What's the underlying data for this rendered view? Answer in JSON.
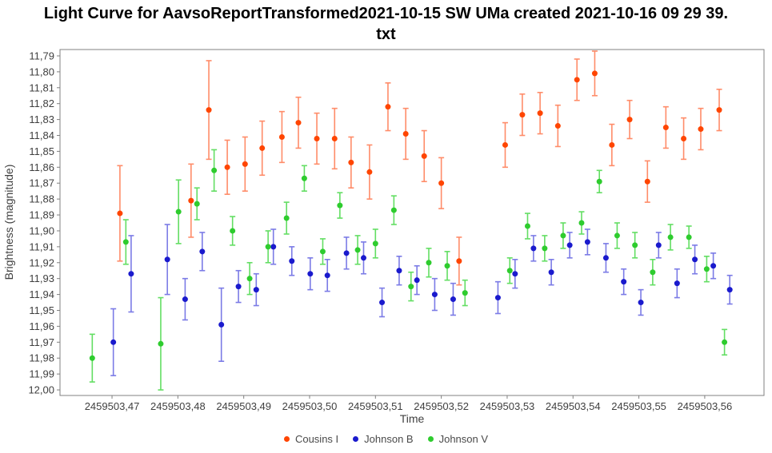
{
  "title": {
    "line1": "Light Curve for AavsoReportTransformed2021-10-15 SW UMa created 2021-10-16 09 29 39.",
    "line2": "txt"
  },
  "axes": {
    "x_label": "Time",
    "y_label": "Brightness (magnitude)"
  },
  "chart_data": {
    "type": "scatter",
    "error_bars": true,
    "title": "Light Curve for AavsoReportTransformed2021-10-15 SW UMa created 2021-10-16 09 29 39.txt",
    "xlabel": "Time",
    "ylabel": "Brightness (magnitude)",
    "xlim": [
      2459503.4621,
      2459503.569
    ],
    "ylim": [
      11.786,
      12.0035
    ],
    "y_axis_inverted": true,
    "grid": false,
    "legend_position": "bottom",
    "frame_color": "#808080",
    "x_ticks": [
      2459503.47,
      2459503.48,
      2459503.49,
      2459503.5,
      2459503.51,
      2459503.52,
      2459503.53,
      2459503.54,
      2459503.55,
      2459503.56
    ],
    "x_tick_labels": [
      "2459503,47",
      "2459503,48",
      "2459503,49",
      "2459503,50",
      "2459503,51",
      "2459503,52",
      "2459503,53",
      "2459503,54",
      "2459503,55",
      "2459503,56"
    ],
    "y_ticks": [
      11.79,
      11.8,
      11.81,
      11.82,
      11.83,
      11.84,
      11.85,
      11.86,
      11.87,
      11.88,
      11.89,
      11.9,
      11.91,
      11.92,
      11.93,
      11.94,
      11.95,
      11.96,
      11.97,
      11.98,
      11.99,
      12.0
    ],
    "y_tick_labels": [
      "11,79",
      "11,80",
      "11,81",
      "11,82",
      "11,83",
      "11,84",
      "11,85",
      "11,86",
      "11,87",
      "11,88",
      "11,89",
      "11,90",
      "11,91",
      "11,92",
      "11,93",
      "11,94",
      "11,95",
      "11,96",
      "11,97",
      "11,98",
      "11,99",
      "12,00"
    ],
    "series": [
      {
        "name": "Cousins I",
        "color": "#FF4500",
        "bar_color": "#FF8C69",
        "points": [
          [
            2459503.4712,
            11.889,
            0.03
          ],
          [
            2459503.482,
            11.881,
            0.023
          ],
          [
            2459503.4847,
            11.824,
            0.031
          ],
          [
            2459503.4875,
            11.86,
            0.017
          ],
          [
            2459503.4902,
            11.858,
            0.017
          ],
          [
            2459503.4928,
            11.848,
            0.017
          ],
          [
            2459503.4958,
            11.841,
            0.016
          ],
          [
            2459503.4983,
            11.832,
            0.016
          ],
          [
            2459503.5011,
            11.842,
            0.016
          ],
          [
            2459503.5038,
            11.842,
            0.019
          ],
          [
            2459503.5063,
            11.857,
            0.016
          ],
          [
            2459503.5091,
            11.863,
            0.017
          ],
          [
            2459503.5119,
            11.822,
            0.015
          ],
          [
            2459503.5146,
            11.839,
            0.016
          ],
          [
            2459503.5174,
            11.853,
            0.016
          ],
          [
            2459503.52,
            11.87,
            0.016
          ],
          [
            2459503.5227,
            11.919,
            0.015
          ],
          [
            2459503.5297,
            11.846,
            0.014
          ],
          [
            2459503.5323,
            11.827,
            0.013
          ],
          [
            2459503.535,
            11.826,
            0.013
          ],
          [
            2459503.5377,
            11.834,
            0.013
          ],
          [
            2459503.5406,
            11.805,
            0.013
          ],
          [
            2459503.5433,
            11.801,
            0.014
          ],
          [
            2459503.5459,
            11.846,
            0.013
          ],
          [
            2459503.5486,
            11.83,
            0.012
          ],
          [
            2459503.5513,
            11.869,
            0.013
          ],
          [
            2459503.5541,
            11.835,
            0.013
          ],
          [
            2459503.5568,
            11.842,
            0.013
          ],
          [
            2459503.5594,
            11.836,
            0.013
          ],
          [
            2459503.5622,
            11.824,
            0.013
          ]
        ]
      },
      {
        "name": "Johnson B",
        "color": "#1A1ACD",
        "bar_color": "#7B7BE6",
        "points": [
          [
            2459503.4702,
            11.97,
            0.021
          ],
          [
            2459503.4729,
            11.927,
            0.024
          ],
          [
            2459503.4784,
            11.918,
            0.022
          ],
          [
            2459503.4811,
            11.943,
            0.013
          ],
          [
            2459503.4837,
            11.913,
            0.012
          ],
          [
            2459503.4866,
            11.959,
            0.023
          ],
          [
            2459503.4892,
            11.935,
            0.01
          ],
          [
            2459503.4919,
            11.937,
            0.01
          ],
          [
            2459503.4945,
            11.91,
            0.011
          ],
          [
            2459503.4973,
            11.919,
            0.009
          ],
          [
            2459503.5001,
            11.927,
            0.01
          ],
          [
            2459503.5027,
            11.928,
            0.01
          ],
          [
            2459503.5056,
            11.914,
            0.01
          ],
          [
            2459503.5082,
            11.917,
            0.01
          ],
          [
            2459503.511,
            11.945,
            0.009
          ],
          [
            2459503.5136,
            11.925,
            0.009
          ],
          [
            2459503.5163,
            11.931,
            0.009
          ],
          [
            2459503.519,
            11.94,
            0.01
          ],
          [
            2459503.5218,
            11.943,
            0.01
          ],
          [
            2459503.5286,
            11.942,
            0.01
          ],
          [
            2459503.5312,
            11.927,
            0.009
          ],
          [
            2459503.534,
            11.911,
            0.008
          ],
          [
            2459503.5367,
            11.926,
            0.008
          ],
          [
            2459503.5395,
            11.909,
            0.008
          ],
          [
            2459503.5422,
            11.907,
            0.008
          ],
          [
            2459503.545,
            11.917,
            0.009
          ],
          [
            2459503.5477,
            11.932,
            0.008
          ],
          [
            2459503.5503,
            11.945,
            0.008
          ],
          [
            2459503.553,
            11.909,
            0.008
          ],
          [
            2459503.5558,
            11.933,
            0.009
          ],
          [
            2459503.5585,
            11.918,
            0.009
          ],
          [
            2459503.5613,
            11.922,
            0.008
          ],
          [
            2459503.5638,
            11.937,
            0.009
          ]
        ]
      },
      {
        "name": "Johnson V",
        "color": "#2ECC2E",
        "bar_color": "#63DE63",
        "points": [
          [
            2459503.467,
            11.98,
            0.015
          ],
          [
            2459503.4721,
            11.907,
            0.014
          ],
          [
            2459503.4774,
            11.971,
            0.029
          ],
          [
            2459503.4801,
            11.888,
            0.02
          ],
          [
            2459503.4829,
            11.883,
            0.01
          ],
          [
            2459503.4855,
            11.862,
            0.013
          ],
          [
            2459503.4883,
            11.9,
            0.009
          ],
          [
            2459503.4909,
            11.93,
            0.01
          ],
          [
            2459503.4937,
            11.91,
            0.01
          ],
          [
            2459503.4965,
            11.892,
            0.01
          ],
          [
            2459503.4992,
            11.867,
            0.008
          ],
          [
            2459503.502,
            11.913,
            0.008
          ],
          [
            2459503.5046,
            11.884,
            0.008
          ],
          [
            2459503.5073,
            11.912,
            0.009
          ],
          [
            2459503.51,
            11.908,
            0.009
          ],
          [
            2459503.5128,
            11.887,
            0.009
          ],
          [
            2459503.5154,
            11.935,
            0.009
          ],
          [
            2459503.5181,
            11.92,
            0.009
          ],
          [
            2459503.5209,
            11.922,
            0.009
          ],
          [
            2459503.5236,
            11.939,
            0.008
          ],
          [
            2459503.5304,
            11.925,
            0.008
          ],
          [
            2459503.5331,
            11.897,
            0.008
          ],
          [
            2459503.5357,
            11.911,
            0.008
          ],
          [
            2459503.5385,
            11.903,
            0.008
          ],
          [
            2459503.5413,
            11.895,
            0.007
          ],
          [
            2459503.544,
            11.869,
            0.007
          ],
          [
            2459503.5467,
            11.903,
            0.008
          ],
          [
            2459503.5494,
            11.909,
            0.008
          ],
          [
            2459503.5521,
            11.926,
            0.008
          ],
          [
            2459503.5548,
            11.904,
            0.008
          ],
          [
            2459503.5576,
            11.904,
            0.007
          ],
          [
            2459503.5603,
            11.924,
            0.008
          ],
          [
            2459503.563,
            11.97,
            0.008
          ]
        ]
      }
    ]
  }
}
